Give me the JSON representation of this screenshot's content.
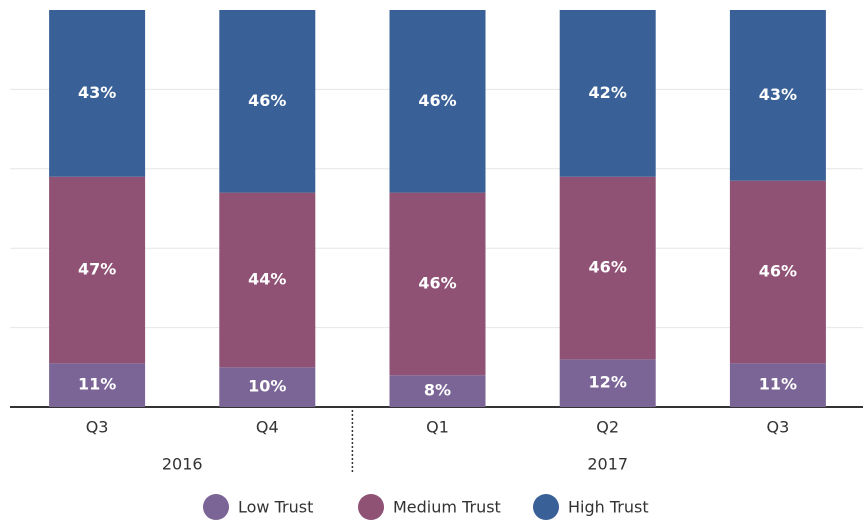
{
  "chart_data": {
    "type": "stacked-bar",
    "categories": [
      "Q3",
      "Q4",
      "Q1",
      "Q2",
      "Q3"
    ],
    "groups": [
      {
        "name": "2016",
        "count": 2
      },
      {
        "name": "2017",
        "count": 3
      }
    ],
    "series": [
      {
        "name": "Low Trust",
        "color": "#7b6596",
        "values": [
          11,
          10,
          8,
          12,
          11
        ],
        "value_labels": [
          "11%",
          "10%",
          "8%",
          "12%",
          "11%"
        ]
      },
      {
        "name": "Medium Trust",
        "color": "#8f5174",
        "values": [
          47,
          44,
          46,
          46,
          46
        ],
        "value_labels": [
          "47%",
          "44%",
          "46%",
          "46%",
          "46%"
        ]
      },
      {
        "name": "High Trust",
        "color": "#3a6197",
        "values": [
          43,
          46,
          46,
          42,
          43
        ],
        "value_labels": [
          "43%",
          "46%",
          "46%",
          "42%",
          "43%"
        ]
      }
    ],
    "ylim": [
      0,
      100
    ],
    "yticks": [
      0,
      20,
      40,
      60,
      80,
      100
    ],
    "grid": true
  }
}
